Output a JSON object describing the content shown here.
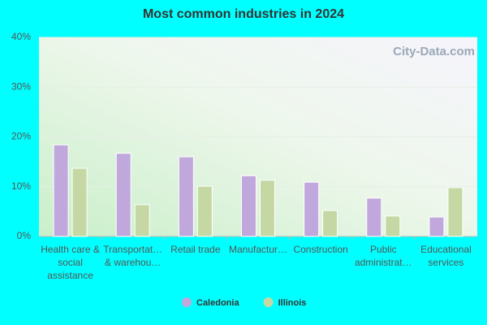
{
  "chart_data": {
    "type": "bar",
    "title": "Most common industries in 2024",
    "watermark": "City-Data.com",
    "categories": [
      "Health care & social assistance",
      "Transportat… & warehou…",
      "Retail trade",
      "Manufactur…",
      "Construction",
      "Public administrat…",
      "Educational services"
    ],
    "series": [
      {
        "name": "Caledonia",
        "color": "#c0a8dc",
        "values": [
          18.4,
          16.7,
          16.0,
          12.2,
          10.9,
          7.7,
          3.9
        ]
      },
      {
        "name": "Illinois",
        "color": "#c5d8a4",
        "values": [
          13.7,
          6.4,
          10.1,
          11.3,
          5.2,
          4.1,
          9.8
        ]
      }
    ],
    "ylim": [
      0,
      40
    ],
    "yticks": [
      {
        "value": 0,
        "label": "0%"
      },
      {
        "value": 10,
        "label": "10%"
      },
      {
        "value": 20,
        "label": "20%"
      },
      {
        "value": 30,
        "label": "30%"
      },
      {
        "value": 40,
        "label": "40%"
      }
    ],
    "grid": true,
    "legend": "bottom"
  }
}
